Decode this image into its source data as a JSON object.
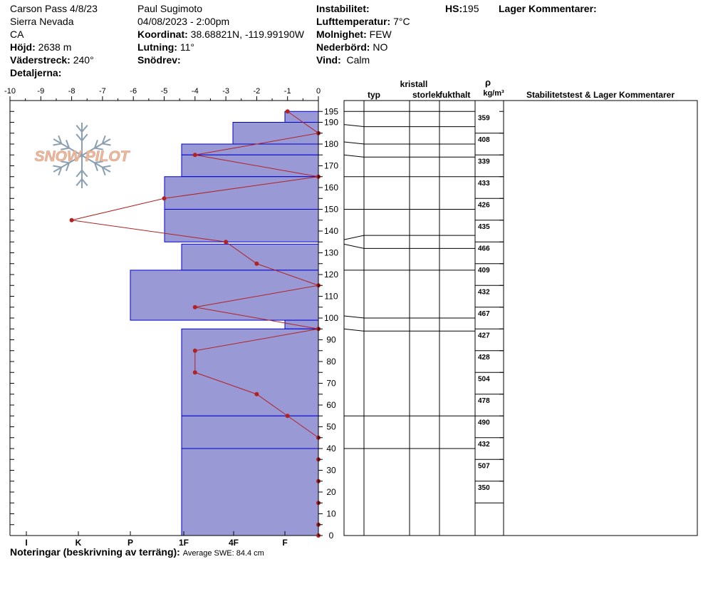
{
  "header": {
    "location": "Carson Pass 4/8/23",
    "range": "Sierra Nevada",
    "state": "CA",
    "elevation_label": "Höjd:",
    "elevation_value": "2638 m",
    "aspect_label": "Väderstreck:",
    "aspect_value": "240°",
    "details_label": "Detaljerna:",
    "observer": "Paul Sugimoto",
    "datetime": "04/08/2023 - 2:00pm",
    "coord_label": "Koordinat:",
    "coord_value": "38.68821N, -119.99190W",
    "slope_label": "Lutning:",
    "slope_value": "11°",
    "drift_label": "Snödrev:",
    "drift_value": "",
    "instability_label": "Instabilitet:",
    "instability_value": "",
    "airtemp_label": "Lufttemperatur:",
    "airtemp_value": "7°C",
    "sky_label": "Molnighet:",
    "sky_value": "FEW",
    "precip_label": "Nederbörd:",
    "precip_value": "NO",
    "wind_label": "Vind:",
    "wind_value": "Calm",
    "hs_label": "HS:",
    "hs_value": "195",
    "layer_comments_label": "Lager Kommentarer:"
  },
  "logo_text": "SNOW PILOT",
  "notes": {
    "label": "Noteringar (beskrivning av terräng):",
    "value": "Average SWE: 84.4 cm"
  },
  "colors": {
    "bar_fill": "#9999d6",
    "bar_line": "#0000cc",
    "temp_line": "#b22222",
    "logo": "#f0b79a"
  },
  "table_headers": {
    "crystal": "kristall",
    "type": "typ",
    "size": "storlek",
    "moisture": "fukthalt",
    "rho": "ρ",
    "density_unit": "kg/m³",
    "stability": "Stabilitetstest & Lager Kommentarer"
  },
  "chart_data": {
    "type": "snow-profile",
    "y_axis": {
      "min": 0,
      "max": 200,
      "ticks": [
        0,
        5,
        10,
        15,
        20,
        25,
        30,
        35,
        40,
        45,
        50,
        55,
        60,
        65,
        70,
        75,
        80,
        85,
        90,
        95,
        100,
        105,
        110,
        115,
        120,
        125,
        130,
        135,
        140,
        145,
        150,
        155,
        160,
        165,
        170,
        175,
        180,
        185,
        190,
        195
      ],
      "labels": [
        0,
        10,
        20,
        30,
        40,
        50,
        60,
        70,
        80,
        90,
        100,
        110,
        120,
        130,
        140,
        150,
        160,
        170,
        180,
        190,
        195
      ]
    },
    "temperature_axis": {
      "min": -10,
      "max": 0,
      "labels": [
        "-10",
        "-9",
        "-8",
        "-7",
        "-6",
        "-5",
        "-4",
        "-3",
        "-2",
        "-1",
        "0"
      ]
    },
    "hardness_axis": {
      "labels": [
        "I",
        "K",
        "P",
        "1F",
        "4F",
        "F"
      ]
    },
    "hardness_layers": [
      {
        "bottom": 190,
        "top": 195,
        "hardness": "F"
      },
      {
        "bottom": 180,
        "top": 190,
        "hardness": "4F"
      },
      {
        "bottom": 175,
        "top": 180,
        "hardness": "1F"
      },
      {
        "bottom": 165,
        "top": 175,
        "hardness": "1F"
      },
      {
        "bottom": 150,
        "top": 165,
        "hardness": "1F+"
      },
      {
        "bottom": 135,
        "top": 150,
        "hardness": "1F+"
      },
      {
        "bottom": 122,
        "top": 134,
        "hardness": "1F"
      },
      {
        "bottom": 99,
        "top": 122,
        "hardness": "P"
      },
      {
        "bottom": 95,
        "top": 99,
        "hardness": "F"
      },
      {
        "bottom": 55,
        "top": 95,
        "hardness": "1F"
      },
      {
        "bottom": 40,
        "top": 55,
        "hardness": "1F"
      },
      {
        "bottom": 0,
        "top": 40,
        "hardness": "1F"
      }
    ],
    "temperature_profile": [
      {
        "depth": 195,
        "temp": -1
      },
      {
        "depth": 185,
        "temp": 0
      },
      {
        "depth": 175,
        "temp": -4
      },
      {
        "depth": 165,
        "temp": 0
      },
      {
        "depth": 155,
        "temp": -5
      },
      {
        "depth": 145,
        "temp": -8
      },
      {
        "depth": 135,
        "temp": -3
      },
      {
        "depth": 125,
        "temp": -2
      },
      {
        "depth": 115,
        "temp": 0
      },
      {
        "depth": 105,
        "temp": -4
      },
      {
        "depth": 95,
        "temp": 0
      },
      {
        "depth": 85,
        "temp": -4
      },
      {
        "depth": 75,
        "temp": -4
      },
      {
        "depth": 65,
        "temp": -2
      },
      {
        "depth": 55,
        "temp": -1
      },
      {
        "depth": 45,
        "temp": 0
      },
      {
        "depth": 35,
        "temp": 0
      },
      {
        "depth": 25,
        "temp": 0
      },
      {
        "depth": 15,
        "temp": 0
      },
      {
        "depth": 5,
        "temp": 0
      },
      {
        "depth": 0,
        "temp": 0
      }
    ],
    "layer_boundaries": [
      195,
      188,
      180,
      174,
      165,
      150,
      138,
      132,
      122,
      100,
      94,
      55,
      40
    ],
    "densities": [
      {
        "depth": 190,
        "value": 359
      },
      {
        "depth": 180,
        "value": 408
      },
      {
        "depth": 170,
        "value": 339
      },
      {
        "depth": 160,
        "value": 433
      },
      {
        "depth": 150,
        "value": 426
      },
      {
        "depth": 140,
        "value": 435
      },
      {
        "depth": 130,
        "value": 466
      },
      {
        "depth": 120,
        "value": 409
      },
      {
        "depth": 110,
        "value": 432
      },
      {
        "depth": 100,
        "value": 467
      },
      {
        "depth": 90,
        "value": 427
      },
      {
        "depth": 80,
        "value": 428
      },
      {
        "depth": 70,
        "value": 504
      },
      {
        "depth": 60,
        "value": 478
      },
      {
        "depth": 50,
        "value": 490
      },
      {
        "depth": 40,
        "value": 432
      },
      {
        "depth": 30,
        "value": 507
      },
      {
        "depth": 20,
        "value": 350
      }
    ]
  }
}
